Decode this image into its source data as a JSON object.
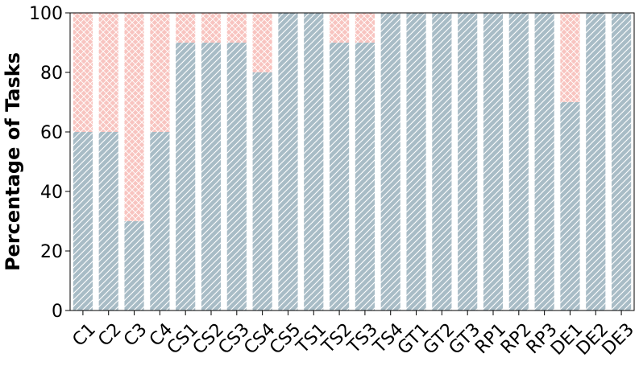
{
  "chart_data": {
    "type": "stacked_bar",
    "y_label": "Percentage of Tasks",
    "categories": [
      "C1",
      "C2",
      "C3",
      "C4",
      "CS1",
      "CS2",
      "CS3",
      "CS4",
      "CS5",
      "TS1",
      "TS2",
      "TS3",
      "TS4",
      "GT1",
      "GT2",
      "GT3",
      "RP1",
      "RP2",
      "RP3",
      "DE1",
      "DE2",
      "DE3"
    ],
    "series": [
      {
        "color": "#a8bcc6",
        "hatch": "diagonal",
        "values": [
          60,
          60,
          30,
          60,
          90,
          90,
          90,
          80,
          100,
          100,
          90,
          90,
          100,
          100,
          100,
          100,
          100,
          100,
          100,
          70,
          100,
          100
        ]
      },
      {
        "color": "#f8c4c0",
        "hatch": "cross",
        "values": [
          40,
          40,
          70,
          40,
          10,
          10,
          10,
          20,
          0,
          0,
          10,
          10,
          0,
          0,
          0,
          0,
          0,
          0,
          0,
          30,
          0,
          0
        ]
      }
    ],
    "ylim": [
      0,
      100
    ],
    "yticks": [
      0,
      20,
      40,
      60,
      80,
      100
    ]
  }
}
